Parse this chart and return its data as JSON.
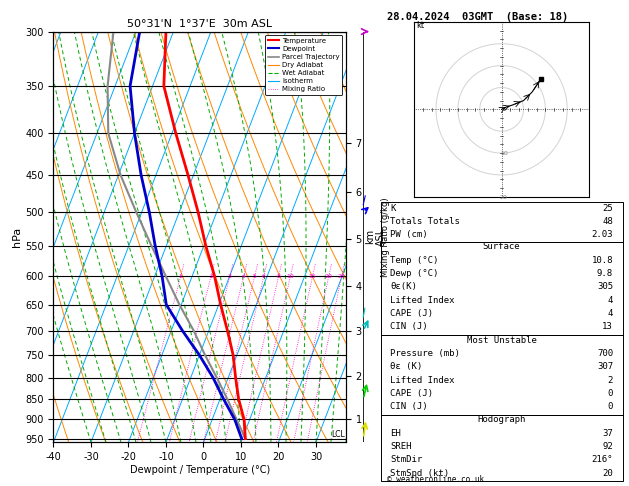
{
  "title_left": "50°31'N  1°37'E  30m ASL",
  "title_right": "28.04.2024  03GMT  (Base: 18)",
  "xlabel": "Dewpoint / Temperature (°C)",
  "ylabel_left": "hPa",
  "copyright": "© weatheronline.co.uk",
  "pressure_levels": [
    300,
    350,
    400,
    450,
    500,
    550,
    600,
    650,
    700,
    750,
    800,
    850,
    900,
    950
  ],
  "pmin": 300,
  "pmax": 960,
  "xlim": [
    -40,
    38
  ],
  "skew_factor": 42,
  "temp_profile_pressure": [
    950,
    900,
    850,
    800,
    750,
    700,
    650,
    600,
    550,
    500,
    450,
    400,
    350,
    300
  ],
  "temp_profile_temp": [
    10.8,
    8.5,
    5.0,
    2.0,
    -1.0,
    -5.0,
    -9.5,
    -14.0,
    -19.5,
    -25.0,
    -31.5,
    -39.0,
    -47.0,
    -52.0
  ],
  "dewp_profile_pressure": [
    950,
    900,
    850,
    800,
    750,
    700,
    650,
    600,
    550,
    500,
    450,
    400,
    350,
    300
  ],
  "dewp_profile_temp": [
    9.8,
    6.0,
    1.0,
    -4.0,
    -10.0,
    -17.0,
    -24.0,
    -28.0,
    -33.0,
    -38.0,
    -44.0,
    -50.0,
    -56.0,
    -59.0
  ],
  "parcel_pressure": [
    950,
    900,
    850,
    800,
    750,
    700,
    650,
    600,
    550,
    500,
    450,
    400,
    350,
    300
  ],
  "parcel_temp": [
    10.8,
    6.5,
    2.0,
    -3.0,
    -8.5,
    -14.0,
    -20.5,
    -27.0,
    -34.0,
    -41.5,
    -49.5,
    -57.0,
    -62.0,
    -66.0
  ],
  "lcl_pressure": 940,
  "mixing_ratio_values": [
    1,
    2,
    3,
    4,
    5,
    6,
    8,
    10,
    15,
    20,
    25
  ],
  "km_ticks": [
    1,
    2,
    3,
    4,
    5,
    6,
    7
  ],
  "km_pressures": [
    899,
    795,
    700,
    616,
    540,
    472,
    411
  ],
  "color_temp": "#ff0000",
  "color_dewp": "#0000cc",
  "color_parcel": "#888888",
  "color_dry_adiabat": "#ff8800",
  "color_wet_adiabat": "#00aa00",
  "color_isotherm": "#00aaff",
  "color_mixing": "#ff00cc",
  "info_K": 25,
  "info_TT": 48,
  "info_PW": "2.03",
  "sfc_temp": "10.8",
  "sfc_dewp": "9.8",
  "sfc_theta_e": 305,
  "sfc_li": 4,
  "sfc_cape": 4,
  "sfc_cin": 13,
  "mu_press": 700,
  "mu_theta_e": 307,
  "mu_li": 2,
  "mu_cape": 0,
  "mu_cin": 0,
  "hodo_EH": 37,
  "hodo_SREH": 92,
  "hodo_StmDir": "216°",
  "hodo_StmSpd": 20,
  "wind_barbs": [
    {
      "p": 950,
      "color": "#dddd00",
      "spd": 5,
      "dir": 200
    },
    {
      "p": 850,
      "color": "#00cc00",
      "spd": 8,
      "dir": 210
    },
    {
      "p": 700,
      "color": "#00bbbb",
      "spd": 12,
      "dir": 230
    },
    {
      "p": 500,
      "color": "#0000ff",
      "spd": 18,
      "dir": 250
    },
    {
      "p": 300,
      "color": "#cc00cc",
      "spd": 25,
      "dir": 270
    }
  ]
}
